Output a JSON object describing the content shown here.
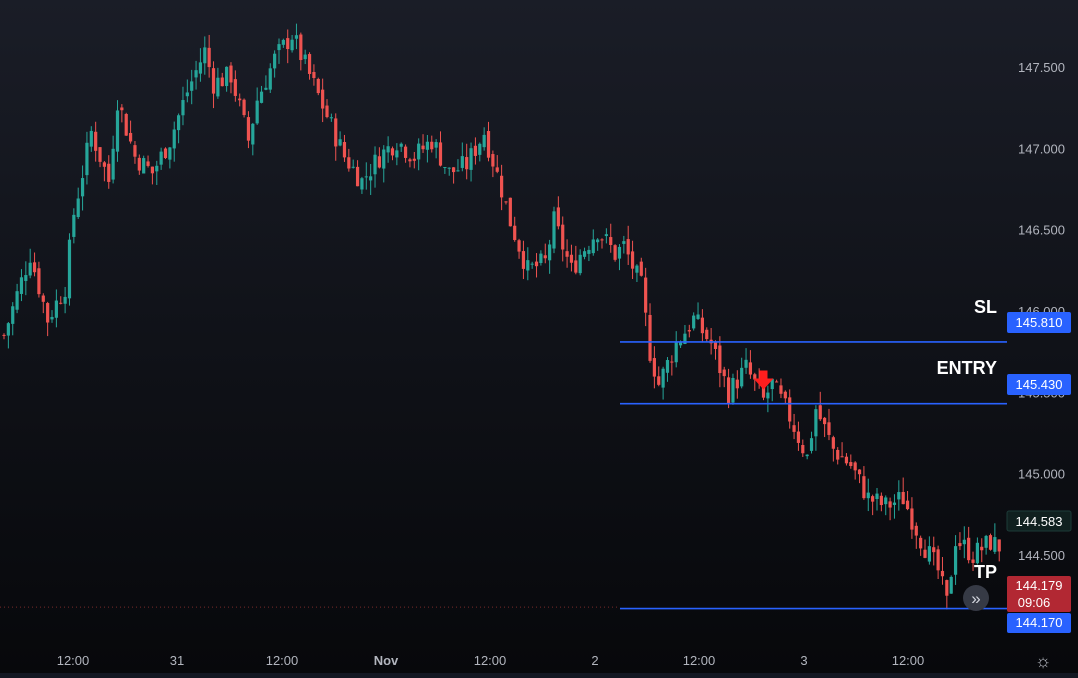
{
  "colors": {
    "background": "#0f1117",
    "up": "#26a69a",
    "down": "#ef5350",
    "level_line": "#2962ff",
    "level_tag": "#2962ff",
    "last_price_tag": "#b22833",
    "arrow": "#ff1e1e",
    "axis_text": "#b2b5be"
  },
  "chart_data": {
    "type": "candlestick",
    "y_axis": {
      "ylim": [
        143.85,
        147.78
      ],
      "ticks": [
        "147.500",
        "147.000",
        "146.500",
        "146.000",
        "145.500",
        "145.000",
        "144.500"
      ]
    },
    "x_axis": {
      "tick_labels": [
        "12:00",
        "31",
        "12:00",
        "Nov",
        "12:00",
        "2",
        "12:00",
        "3",
        "12:00"
      ]
    },
    "levels": [
      {
        "label": "SL",
        "price": 145.81,
        "tag": "145.810"
      },
      {
        "label": "ENTRY",
        "price": 145.43,
        "tag": "145.430"
      },
      {
        "label": "TP",
        "price": 144.17,
        "tag": "144.170"
      }
    ],
    "last_price": {
      "value": "144.179",
      "countdown": "09:06"
    },
    "ghost_price": "144.583",
    "price_path": [
      [
        0,
        145.85
      ],
      [
        3,
        146.35
      ],
      [
        5,
        145.95
      ],
      [
        7,
        146.15
      ],
      [
        8,
        146.6
      ],
      [
        10,
        147.1
      ],
      [
        12,
        146.8
      ],
      [
        13,
        147.3
      ],
      [
        15,
        146.95
      ],
      [
        17,
        146.85
      ],
      [
        19,
        147.05
      ],
      [
        21,
        147.35
      ],
      [
        23,
        147.6
      ],
      [
        24,
        147.4
      ],
      [
        26,
        147.45
      ],
      [
        28,
        147.05
      ],
      [
        29,
        147.3
      ],
      [
        31,
        147.55
      ],
      [
        33,
        147.7
      ],
      [
        35,
        147.45
      ],
      [
        37,
        147.2
      ],
      [
        39,
        146.95
      ],
      [
        41,
        146.8
      ],
      [
        43,
        146.95
      ],
      [
        45,
        147.05
      ],
      [
        47,
        146.95
      ],
      [
        49,
        147.05
      ],
      [
        51,
        146.85
      ],
      [
        53,
        146.9
      ],
      [
        55,
        147.1
      ],
      [
        57,
        146.75
      ],
      [
        58,
        146.55
      ],
      [
        60,
        146.25
      ],
      [
        62,
        146.3
      ],
      [
        63,
        146.55
      ],
      [
        65,
        146.25
      ],
      [
        66,
        146.35
      ],
      [
        68,
        146.5
      ],
      [
        70,
        146.35
      ],
      [
        71,
        146.4
      ],
      [
        73,
        146.15
      ],
      [
        74,
        145.75
      ],
      [
        75,
        145.55
      ],
      [
        77,
        145.8
      ],
      [
        79,
        145.95
      ],
      [
        81,
        145.8
      ],
      [
        83,
        145.5
      ],
      [
        85,
        145.65
      ],
      [
        87,
        145.45
      ],
      [
        88,
        145.55
      ],
      [
        90,
        145.35
      ],
      [
        92,
        145.1
      ],
      [
        93,
        145.4
      ],
      [
        95,
        145.15
      ],
      [
        97,
        145.05
      ],
      [
        99,
        144.85
      ],
      [
        101,
        144.8
      ],
      [
        103,
        144.85
      ],
      [
        105,
        144.6
      ],
      [
        107,
        144.4
      ],
      [
        108,
        144.2
      ],
      [
        109,
        144.6
      ],
      [
        111,
        144.5
      ],
      [
        113,
        144.58
      ],
      [
        114,
        144.55
      ]
    ],
    "arrow_at": {
      "x": 87,
      "price": 145.56
    }
  }
}
